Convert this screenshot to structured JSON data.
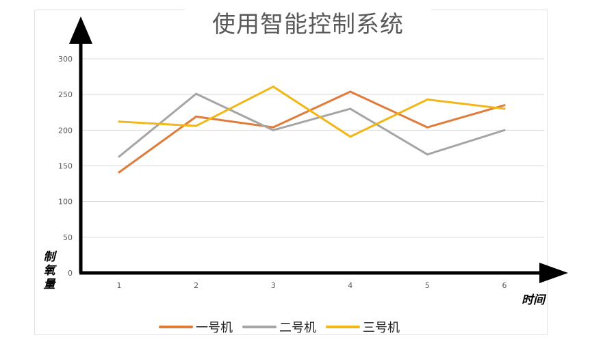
{
  "chart_data": {
    "type": "line",
    "title": "使用智能控制系统",
    "xlabel": "时间",
    "ylabel": "制氧量",
    "categories": [
      "1",
      "2",
      "3",
      "4",
      "5",
      "6"
    ],
    "ylim": [
      0,
      300
    ],
    "yticks": [
      0,
      50,
      100,
      150,
      200,
      250,
      300
    ],
    "grid": true,
    "legend_position": "bottom",
    "series": [
      {
        "name": "一号机",
        "color": "#E07B39",
        "values": [
          141,
          219,
          204,
          254,
          204,
          235
        ]
      },
      {
        "name": "二号机",
        "color": "#A5A5A5",
        "values": [
          163,
          251,
          200,
          230,
          166,
          200
        ]
      },
      {
        "name": "三号机",
        "color": "#F2B716",
        "values": [
          212,
          206,
          261,
          191,
          243,
          230
        ]
      }
    ]
  }
}
